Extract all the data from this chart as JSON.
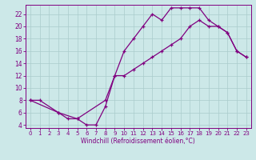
{
  "xlabel": "Windchill (Refroidissement éolien,°C)",
  "bg_color": "#cce8e8",
  "line_color": "#800080",
  "grid_color": "#aacccc",
  "xlim": [
    -0.5,
    23.5
  ],
  "ylim": [
    3.5,
    23.5
  ],
  "xticks": [
    0,
    1,
    2,
    3,
    4,
    5,
    6,
    7,
    8,
    9,
    10,
    11,
    12,
    13,
    14,
    15,
    16,
    17,
    18,
    19,
    20,
    21,
    22,
    23
  ],
  "yticks": [
    4,
    6,
    8,
    10,
    12,
    14,
    16,
    18,
    20,
    22
  ],
  "curve1_x": [
    0,
    1,
    3,
    4,
    5,
    6,
    7,
    8,
    9,
    10,
    11,
    12,
    13,
    14,
    15,
    16,
    17,
    18,
    19,
    20,
    21,
    22,
    23
  ],
  "curve1_y": [
    8,
    8,
    6,
    5,
    5,
    4,
    4,
    7,
    12,
    16,
    18,
    20,
    22,
    21,
    23,
    23,
    23,
    23,
    21,
    20,
    19,
    16,
    15
  ],
  "curve2_x": [
    0,
    3,
    5,
    8,
    9,
    10,
    11,
    12,
    13,
    14,
    15,
    16,
    17,
    18,
    19,
    20,
    21,
    22,
    23
  ],
  "curve2_y": [
    8,
    6,
    5,
    8,
    12,
    12,
    13,
    14,
    15,
    16,
    17,
    18,
    20,
    21,
    20,
    20,
    19,
    16,
    15
  ],
  "xlabel_fontsize": 5.5,
  "tick_fontsize_x": 5.0,
  "tick_fontsize_y": 5.5,
  "linewidth": 0.9,
  "markersize": 3.5,
  "markeredgewidth": 0.9
}
